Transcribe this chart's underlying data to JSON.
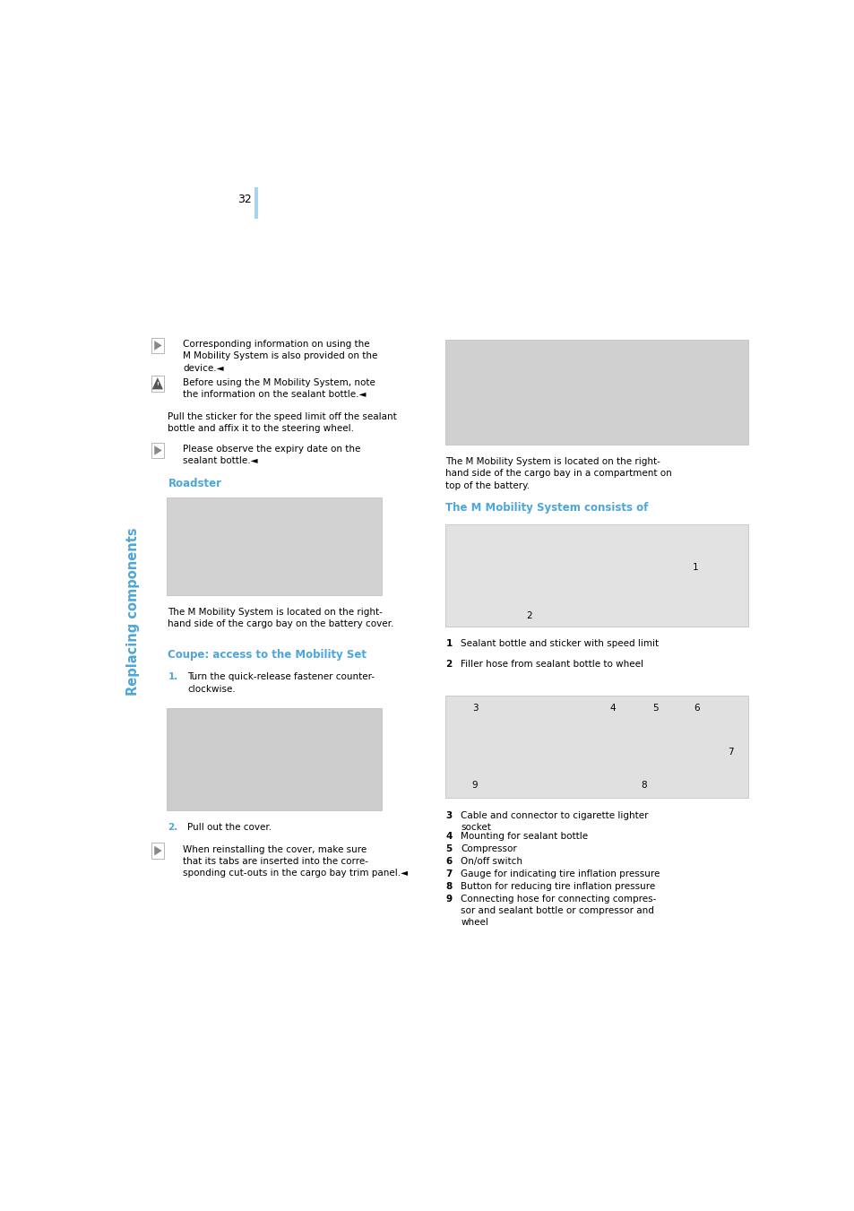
{
  "page_width": 9.54,
  "page_height": 13.51,
  "bg_color": "#ffffff",
  "sidebar_text": "Replacing components",
  "sidebar_color": "#4da6d9",
  "page_number": "32",
  "blue_bar_color": "#a8d4f0",
  "text_color": "#000000",
  "heading_color": "#4da6d9",
  "font_size_body": 7.5,
  "font_size_heading": 8.5,
  "font_size_sidebar": 10.5,
  "sections": {
    "note1_text": "Corresponding information on using the\nM Mobility System is also provided on the\ndevice.◄",
    "warning_text": "Before using the M Mobility System, note\nthe information on the sealant bottle.◄",
    "pull_sticker_text": "Pull the sticker for the speed limit off the sealant\nbottle and affix it to the steering wheel.",
    "note2_text": "Please observe the expiry date on the\nsealant bottle.◄",
    "roadster_heading": "Roadster",
    "roadster_caption": "The M Mobility System is located on the right-\nhand side of the cargo bay on the battery cover.",
    "coupe_heading": "Coupe: access to the Mobility Set",
    "step1_num": "1.",
    "step1_text": "Turn the quick-release fastener counter-\nclockwise.",
    "step2_num": "2.",
    "step2_text": "Pull out the cover.",
    "reinstall_note": "When reinstalling the cover, make sure\nthat its tabs are inserted into the corre-\nsponding cut-outs in the cargo bay trim panel.◄",
    "right_caption1": "The M Mobility System is located on the right-\nhand side of the cargo bay in a compartment on\ntop of the battery.",
    "mobility_heading": "The M Mobility System consists of",
    "item1_num": "1",
    "item1": "Sealant bottle and sticker with speed limit",
    "item2_num": "2",
    "item2": "Filler hose from sealant bottle to wheel",
    "item3_num": "3",
    "item3": "Cable and connector to cigarette lighter\nsocket",
    "item4_num": "4",
    "item4": "Mounting for sealant bottle",
    "item5_num": "5",
    "item5": "Compressor",
    "item6_num": "6",
    "item6": "On/off switch",
    "item7_num": "7",
    "item7": "Gauge for indicating tire inflation pressure",
    "item8_num": "8",
    "item8": "Button for reducing tire inflation pressure",
    "item9_num": "9",
    "item9": "Connecting hose for connecting compres-\nsor and sealant bottle or compressor and\nwheel"
  }
}
